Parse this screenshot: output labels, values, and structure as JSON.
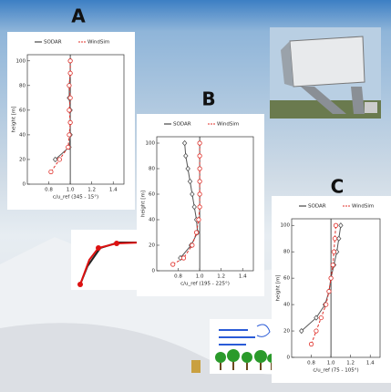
{
  "chart_data": [
    {
      "type": "profile",
      "title": "A",
      "x_label": "c/u_ref (345 - 15°)",
      "y_label": "height [m]",
      "xlim": [
        0.6,
        1.5
      ],
      "ylim": [
        0,
        105
      ],
      "xticks": [
        0.8,
        {
          "value": 1,
          "label": "1.0"
        },
        1.2,
        1.4
      ],
      "yticks": [
        0,
        20,
        40,
        60,
        80,
        100
      ],
      "reference_line": 1,
      "series": [
        {
          "name": "SODAR",
          "color": "#555555",
          "dashed": false,
          "marker": "diamond",
          "y": [
            20,
            30,
            40,
            50,
            60,
            70,
            80,
            90,
            100
          ],
          "x": [
            0.86,
            0.99,
            1.0,
            1.0,
            1.0,
            0.99,
            0.99,
            1.0,
            1.0
          ]
        },
        {
          "name": "WindSim",
          "color": "#e0302a",
          "dashed": true,
          "marker": "circle",
          "y": [
            10,
            20,
            30,
            40,
            50,
            60,
            70,
            80,
            90,
            100
          ],
          "x": [
            0.82,
            0.9,
            0.98,
            0.99,
            1.0,
            0.99,
            1.0,
            0.99,
            1.0,
            1.0
          ]
        }
      ]
    },
    {
      "type": "profile",
      "title": "B",
      "x_label": "c/u_ref (195 - 225°)",
      "y_label": "height [m]",
      "xlim": [
        0.6,
        1.5
      ],
      "ylim": [
        0,
        105
      ],
      "xticks": [
        0.8,
        {
          "value": 1,
          "label": "1.0"
        },
        1.2,
        1.4
      ],
      "yticks": [
        0,
        20,
        40,
        60,
        80,
        100
      ],
      "reference_line": 1,
      "series": [
        {
          "name": "SODAR",
          "color": "#555555",
          "dashed": false,
          "marker": "diamond",
          "y": [
            10,
            20,
            30,
            40,
            50,
            60,
            70,
            80,
            90,
            100
          ],
          "x": [
            0.82,
            0.92,
            0.98,
            0.97,
            0.95,
            0.93,
            0.91,
            0.89,
            0.87,
            0.86
          ]
        },
        {
          "name": "WindSim",
          "color": "#e0302a",
          "dashed": true,
          "marker": "circle",
          "y": [
            5,
            10,
            20,
            30,
            40,
            50,
            60,
            70,
            80,
            90,
            100
          ],
          "x": [
            0.75,
            0.85,
            0.93,
            0.97,
            0.99,
            1.0,
            1.0,
            1.0,
            1.0,
            1.0,
            1.0
          ]
        }
      ]
    },
    {
      "type": "profile",
      "title": "C",
      "x_label": "c/u_ref (75 - 105°)",
      "y_label": "height [m]",
      "xlim": [
        0.6,
        1.5
      ],
      "ylim": [
        0,
        105
      ],
      "xticks": [
        0.8,
        {
          "value": 1,
          "label": "1.0"
        },
        1.2,
        1.4
      ],
      "yticks": [
        0,
        20,
        40,
        60,
        80,
        100
      ],
      "reference_line": 1,
      "series": [
        {
          "name": "SODAR",
          "color": "#555555",
          "dashed": false,
          "marker": "diamond",
          "y": [
            20,
            30,
            40,
            50,
            60,
            70,
            80,
            90,
            100
          ],
          "x": [
            0.7,
            0.85,
            0.94,
            0.98,
            1.0,
            1.03,
            1.06,
            1.08,
            1.1
          ]
        },
        {
          "name": "WindSim",
          "color": "#e0302a",
          "dashed": true,
          "marker": "circle",
          "y": [
            10,
            20,
            30,
            40,
            50,
            60,
            70,
            80,
            90,
            100
          ],
          "x": [
            0.8,
            0.85,
            0.9,
            0.95,
            0.98,
            1.0,
            1.02,
            1.03,
            1.04,
            1.05
          ]
        }
      ]
    }
  ]
}
